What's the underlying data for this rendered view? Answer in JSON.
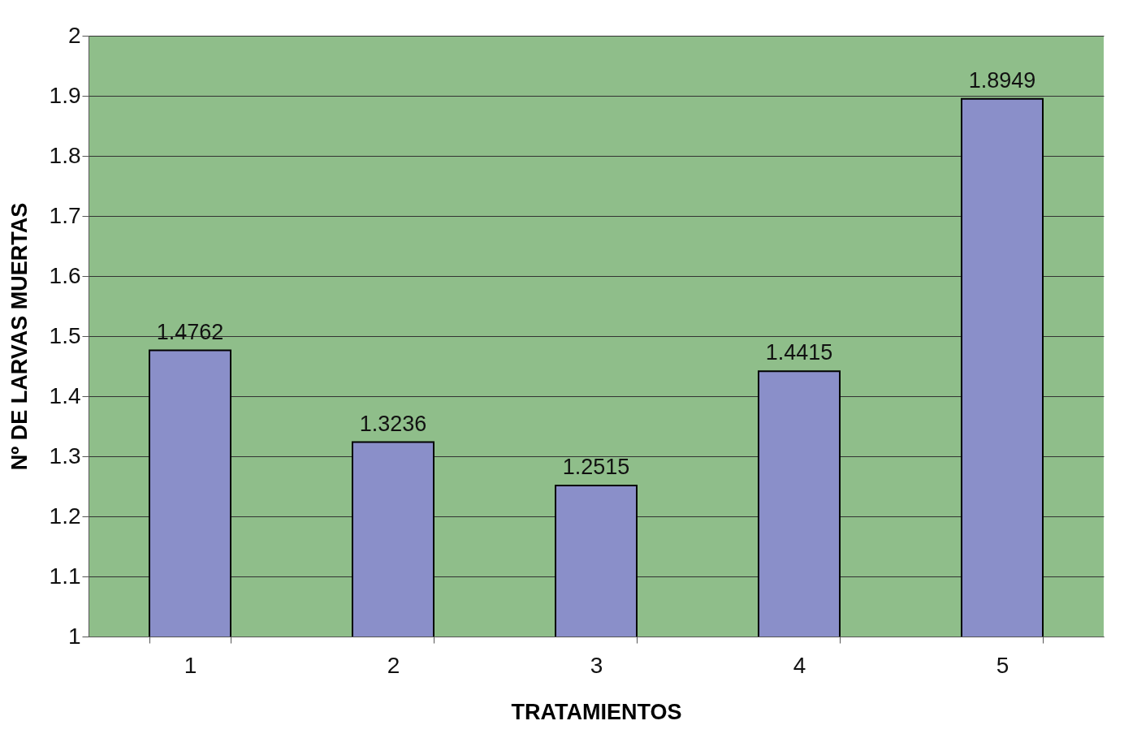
{
  "chart_data": {
    "type": "bar",
    "xlabel": "TRATAMIENTOS",
    "ylabel": "Nº DE LARVAS MUERTAS",
    "categories": [
      "1",
      "2",
      "3",
      "4",
      "5"
    ],
    "values": [
      1.4762,
      1.3236,
      1.2515,
      1.4415,
      1.8949
    ],
    "color": "#8a8fc9",
    "ylim": [
      1,
      2
    ],
    "yticks": [
      1,
      1.1,
      1.2,
      1.3,
      1.4,
      1.5,
      1.6,
      1.7,
      1.8,
      1.9,
      2
    ],
    "grid": "y",
    "data_labels": true
  }
}
